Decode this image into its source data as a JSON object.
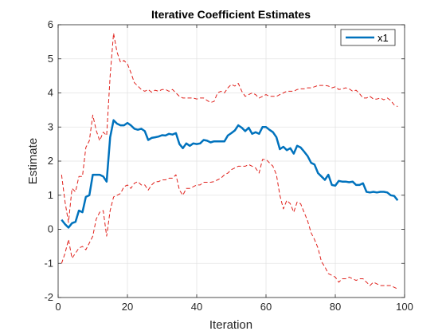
{
  "chart_data": {
    "type": "line",
    "title": "Iterative Coefficient Estimates",
    "xlabel": "Iteration",
    "ylabel": "Estimate",
    "xlim": [
      0,
      100
    ],
    "ylim": [
      -2,
      6
    ],
    "xticks": [
      0,
      20,
      40,
      60,
      80,
      100
    ],
    "yticks": [
      -2,
      -1,
      0,
      1,
      2,
      3,
      4,
      5,
      6
    ],
    "grid": true,
    "legend_position": "top-right",
    "series": [
      {
        "name": "x1",
        "style": "solid",
        "color": "#0072BD",
        "x": [
          1,
          2,
          3,
          4,
          5,
          6,
          7,
          8,
          9,
          10,
          11,
          12,
          13,
          14,
          15,
          16,
          17,
          18,
          19,
          20,
          21,
          22,
          23,
          24,
          25,
          26,
          27,
          28,
          29,
          30,
          31,
          32,
          33,
          34,
          35,
          36,
          37,
          38,
          39,
          40,
          41,
          42,
          43,
          44,
          45,
          46,
          47,
          48,
          49,
          50,
          51,
          52,
          53,
          54,
          55,
          56,
          57,
          58,
          59,
          60,
          61,
          62,
          63,
          64,
          65,
          66,
          67,
          68,
          69,
          70,
          71,
          72,
          73,
          74,
          75,
          76,
          77,
          78,
          79,
          80,
          81,
          82,
          83,
          84,
          85,
          86,
          87,
          88,
          89,
          90,
          91,
          92,
          93,
          94,
          95,
          96,
          97,
          98
        ],
        "y": [
          0.28,
          0.15,
          0.05,
          0.18,
          0.22,
          0.55,
          0.5,
          0.95,
          1.0,
          1.6,
          1.6,
          1.6,
          1.55,
          1.4,
          2.7,
          3.2,
          3.1,
          3.05,
          3.05,
          3.12,
          3.05,
          2.95,
          2.92,
          2.95,
          2.88,
          2.62,
          2.68,
          2.7,
          2.72,
          2.76,
          2.75,
          2.8,
          2.78,
          2.82,
          2.5,
          2.38,
          2.52,
          2.45,
          2.52,
          2.5,
          2.52,
          2.62,
          2.6,
          2.55,
          2.58,
          2.58,
          2.58,
          2.58,
          2.75,
          2.82,
          2.9,
          3.05,
          2.98,
          2.88,
          2.98,
          2.8,
          2.85,
          2.8,
          3.0,
          3.0,
          2.92,
          2.85,
          2.7,
          2.35,
          2.42,
          2.32,
          2.38,
          2.22,
          2.45,
          2.4,
          2.28,
          2.15,
          1.95,
          1.9,
          1.65,
          1.55,
          1.45,
          1.6,
          1.3,
          1.28,
          1.42,
          1.4,
          1.4,
          1.38,
          1.4,
          1.3,
          1.3,
          1.35,
          1.1,
          1.08,
          1.1,
          1.08,
          1.1,
          1.1,
          1.08,
          1.0,
          0.98,
          0.85
        ]
      },
      {
        "name": "",
        "style": "dashed",
        "color": "#D95319",
        "x": [
          1,
          2,
          3,
          4,
          5,
          6,
          7,
          8,
          9,
          10,
          11,
          12,
          13,
          14,
          15,
          16,
          17,
          18,
          19,
          20,
          21,
          22,
          23,
          24,
          25,
          26,
          27,
          28,
          29,
          30,
          31,
          32,
          33,
          34,
          35,
          36,
          37,
          38,
          39,
          40,
          41,
          42,
          43,
          44,
          45,
          46,
          47,
          48,
          49,
          50,
          51,
          52,
          53,
          54,
          55,
          56,
          57,
          58,
          59,
          60,
          61,
          62,
          63,
          64,
          65,
          66,
          67,
          68,
          69,
          70,
          71,
          72,
          73,
          74,
          75,
          76,
          77,
          78,
          79,
          80,
          81,
          82,
          83,
          84,
          85,
          86,
          87,
          88,
          89,
          90,
          91,
          92,
          93,
          94,
          95,
          96,
          97,
          98
        ],
        "y": [
          1.6,
          0.8,
          0.2,
          1.2,
          1.1,
          1.55,
          1.55,
          2.4,
          2.6,
          3.35,
          2.9,
          2.6,
          2.85,
          2.75,
          4.5,
          5.75,
          5.2,
          4.9,
          4.95,
          4.85,
          4.6,
          4.3,
          4.2,
          4.1,
          4.05,
          4.1,
          4.02,
          4.08,
          4.05,
          4.1,
          4.1,
          4.05,
          4.1,
          4.0,
          3.9,
          3.85,
          3.85,
          3.85,
          3.85,
          3.82,
          3.85,
          3.85,
          3.78,
          3.72,
          3.75,
          4.0,
          4.05,
          4.0,
          4.15,
          4.25,
          4.2,
          4.28,
          4.05,
          3.9,
          3.95,
          4.0,
          3.95,
          3.85,
          3.9,
          3.95,
          3.9,
          3.9,
          3.9,
          3.95,
          4.0,
          4.05,
          4.05,
          4.05,
          4.1,
          4.12,
          4.12,
          4.15,
          4.15,
          4.18,
          4.22,
          4.22,
          4.22,
          4.2,
          4.15,
          4.18,
          4.1,
          4.12,
          4.15,
          4.12,
          4.05,
          4.08,
          3.98,
          3.85,
          3.85,
          3.9,
          3.82,
          3.82,
          3.85,
          3.8,
          3.85,
          3.78,
          3.65,
          3.6
        ]
      },
      {
        "name": "",
        "style": "dashed",
        "color": "#D95319",
        "x": [
          1,
          2,
          3,
          4,
          5,
          6,
          7,
          8,
          9,
          10,
          11,
          12,
          13,
          14,
          15,
          16,
          17,
          18,
          19,
          20,
          21,
          22,
          23,
          24,
          25,
          26,
          27,
          28,
          29,
          30,
          31,
          32,
          33,
          34,
          35,
          36,
          37,
          38,
          39,
          40,
          41,
          42,
          43,
          44,
          45,
          46,
          47,
          48,
          49,
          50,
          51,
          52,
          53,
          54,
          55,
          56,
          57,
          58,
          59,
          60,
          61,
          62,
          63,
          64,
          65,
          66,
          67,
          68,
          69,
          70,
          71,
          72,
          73,
          74,
          75,
          76,
          77,
          78,
          79,
          80,
          81,
          82,
          83,
          84,
          85,
          86,
          87,
          88,
          89,
          90,
          91,
          92,
          93,
          94,
          95,
          96,
          97,
          98
        ],
        "y": [
          -1.0,
          -0.7,
          -0.3,
          -0.85,
          -0.7,
          -0.55,
          -0.5,
          -0.6,
          -0.4,
          -0.2,
          0.3,
          0.5,
          0.55,
          -0.2,
          0.55,
          0.95,
          1.0,
          1.05,
          1.25,
          1.3,
          1.2,
          1.35,
          1.4,
          1.3,
          1.3,
          1.15,
          1.3,
          1.4,
          1.4,
          1.45,
          1.45,
          1.5,
          1.5,
          1.6,
          1.15,
          1.0,
          1.2,
          1.2,
          1.25,
          1.3,
          1.3,
          1.38,
          1.38,
          1.38,
          1.4,
          1.45,
          1.5,
          1.6,
          1.65,
          1.75,
          1.8,
          1.85,
          1.85,
          1.85,
          1.9,
          1.85,
          1.8,
          1.65,
          2.05,
          2.05,
          1.95,
          1.85,
          1.6,
          1.0,
          0.6,
          0.85,
          0.75,
          0.5,
          0.8,
          0.75,
          0.5,
          0.25,
          -0.1,
          -0.3,
          -0.55,
          -0.95,
          -1.1,
          -1.3,
          -1.35,
          -1.4,
          -1.55,
          -1.45,
          -1.45,
          -1.4,
          -1.45,
          -1.5,
          -1.45,
          -1.45,
          -1.55,
          -1.65,
          -1.55,
          -1.6,
          -1.65,
          -1.65,
          -1.65,
          -1.65,
          -1.7,
          -1.75
        ]
      }
    ]
  }
}
